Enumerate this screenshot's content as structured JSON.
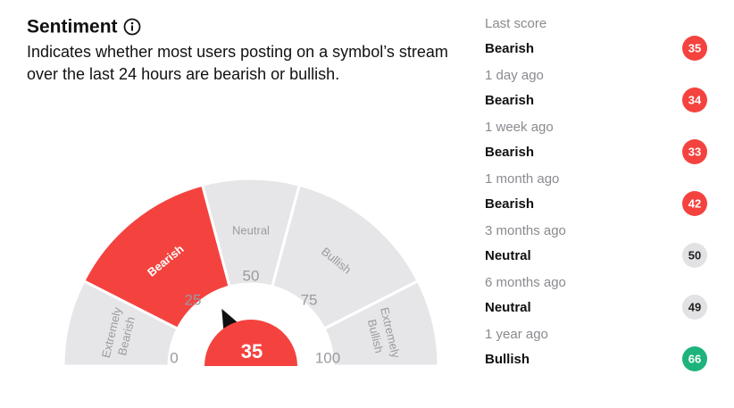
{
  "header": {
    "title": "Sentiment",
    "description": "Indicates whether most users posting on a symbol’s stream over the last 24 hours are bearish or bullish."
  },
  "gauge": {
    "value": 35,
    "ticks": [
      0,
      25,
      50,
      75,
      100
    ],
    "active_color": "#f4433f",
    "inactive_color": "#e6e6e9",
    "segments": [
      {
        "lines": [
          "Extremely",
          "Bearish"
        ]
      },
      {
        "lines": [
          "Bearish"
        ]
      },
      {
        "lines": [
          "Neutral"
        ]
      },
      {
        "lines": [
          "Bullish"
        ]
      },
      {
        "lines": [
          "Extremely",
          "Bullish"
        ]
      }
    ],
    "active_segment": 1
  },
  "history": [
    {
      "when": "Last score",
      "sentiment": "Bearish",
      "score": 35,
      "color": "#f4433f"
    },
    {
      "when": "1 day ago",
      "sentiment": "Bearish",
      "score": 34,
      "color": "#f4433f"
    },
    {
      "when": "1 week ago",
      "sentiment": "Bearish",
      "score": 33,
      "color": "#f4433f"
    },
    {
      "when": "1 month ago",
      "sentiment": "Bearish",
      "score": 42,
      "color": "#f4433f"
    },
    {
      "when": "3 months ago",
      "sentiment": "Neutral",
      "score": 50,
      "color": "#e2e2e4"
    },
    {
      "when": "6 months ago",
      "sentiment": "Neutral",
      "score": 49,
      "color": "#e2e2e4"
    },
    {
      "when": "1 year ago",
      "sentiment": "Bullish",
      "score": 66,
      "color": "#1eb37c"
    }
  ]
}
